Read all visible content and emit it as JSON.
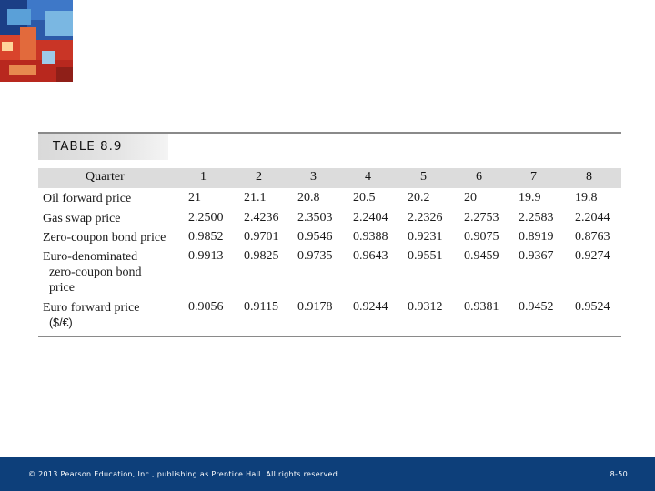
{
  "table": {
    "label": "TABLE 8.9",
    "header": {
      "row_label": "Quarter",
      "quarters": [
        "1",
        "2",
        "3",
        "4",
        "5",
        "6",
        "7",
        "8"
      ]
    },
    "rows": [
      {
        "label": "Oil forward price",
        "values": [
          "21",
          "21.1",
          "20.8",
          "20.5",
          "20.2",
          "20",
          "19.9",
          "19.8"
        ]
      },
      {
        "label": "Gas swap price",
        "values": [
          "2.2500",
          "2.4236",
          "2.3503",
          "2.2404",
          "2.2326",
          "2.2753",
          "2.2583",
          "2.2044"
        ]
      },
      {
        "label": "Zero-coupon bond price",
        "values": [
          "0.9852",
          "0.9701",
          "0.9546",
          "0.9388",
          "0.9231",
          "0.9075",
          "0.8919",
          "0.8763"
        ]
      },
      {
        "label_lines": [
          "Euro-denominated",
          "zero-coupon bond",
          "price"
        ],
        "values": [
          "0.9913",
          "0.9825",
          "0.9735",
          "0.9643",
          "0.9551",
          "0.9459",
          "0.9367",
          "0.9274"
        ]
      },
      {
        "label_lines": [
          "Euro forward price",
          "($/€)"
        ],
        "values": [
          "0.9056",
          "0.9115",
          "0.9178",
          "0.9244",
          "0.9312",
          "0.9381",
          "0.9452",
          "0.9524"
        ]
      }
    ]
  },
  "footer": {
    "copyright": "© 2013 Pearson Education, Inc., publishing as Prentice Hall. All rights reserved.",
    "page": "8-50"
  }
}
